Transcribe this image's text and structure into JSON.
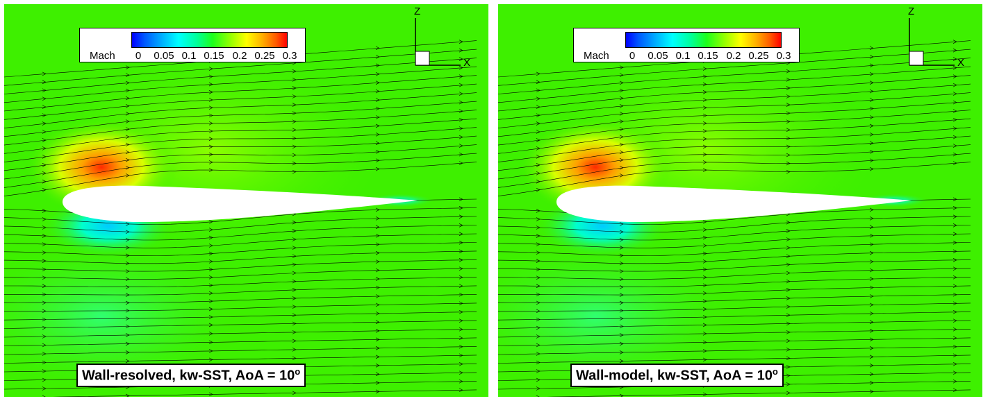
{
  "panels": [
    {
      "caption_text": "Wall-resolved, kw-SST, AoA = 10",
      "caption_sup": "o"
    },
    {
      "caption_text": "Wall-model, kw-SST, AoA = 10",
      "caption_sup": "o"
    }
  ],
  "legend": {
    "variable": "Mach",
    "ticks": [
      "0",
      "0.05",
      "0.1",
      "0.15",
      "0.2",
      "0.25",
      "0.3"
    ],
    "range": [
      0,
      0.3
    ]
  },
  "axes": {
    "z_label": "Z",
    "x_label": "X"
  },
  "colors": {
    "background_field": "#3ef000",
    "low": "#0000ff",
    "high": "#ff0000",
    "streamline": "#000000"
  }
}
